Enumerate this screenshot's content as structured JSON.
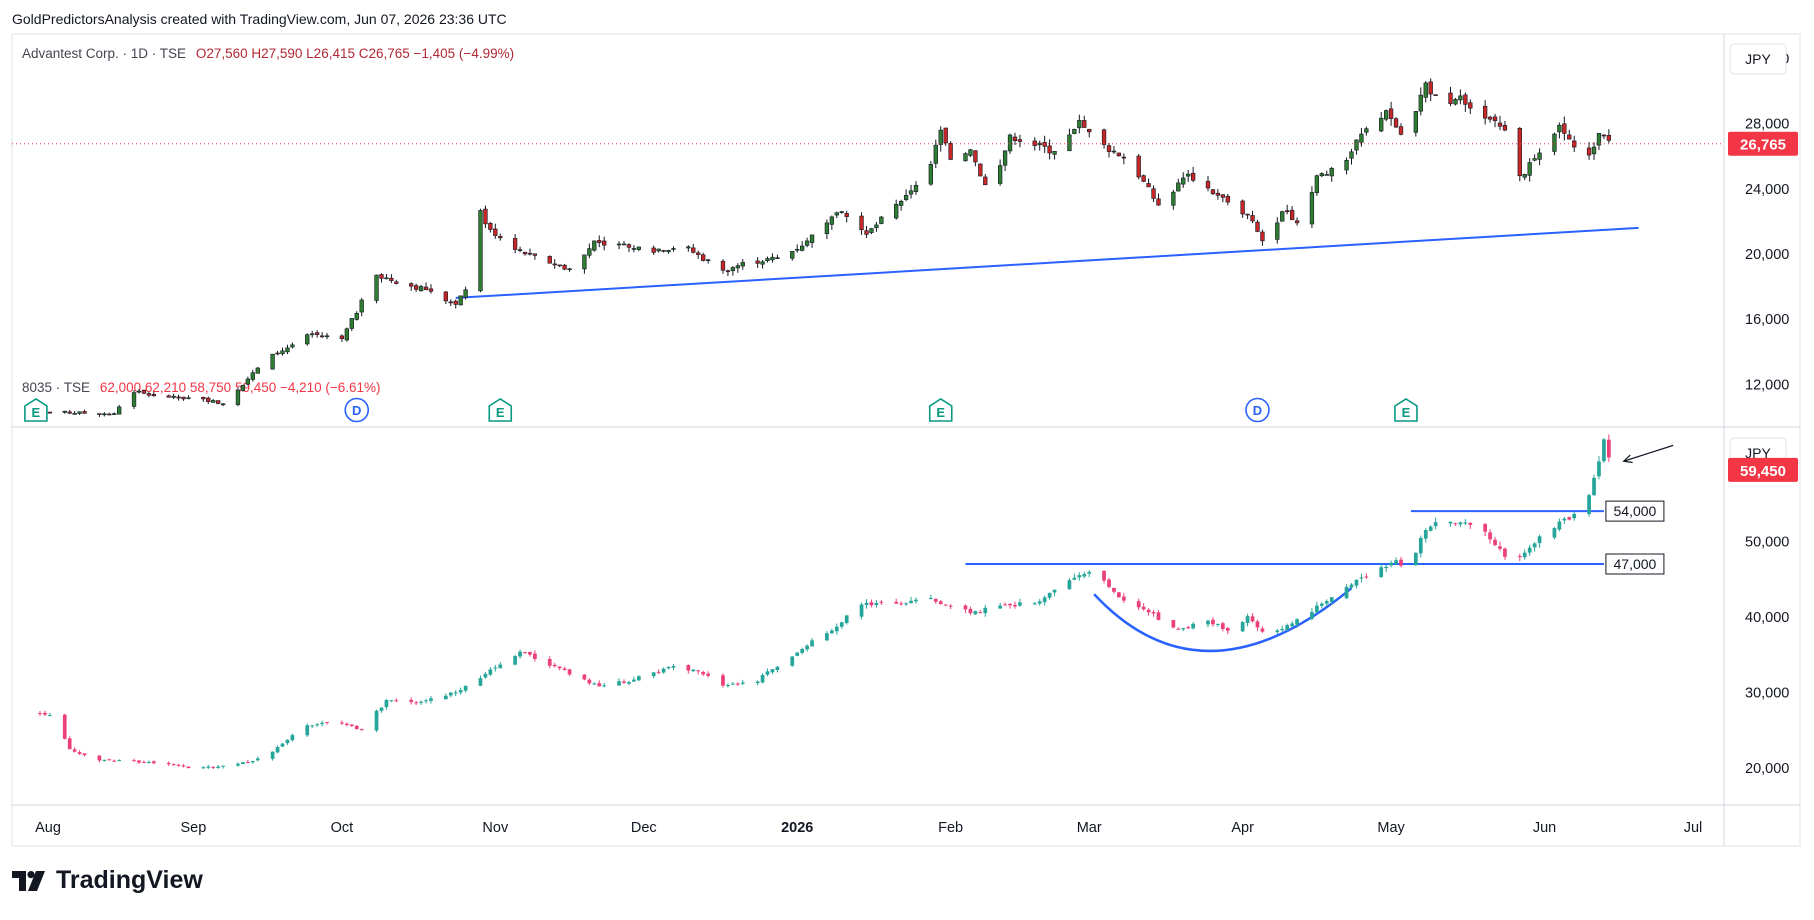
{
  "header": {
    "credit": "GoldPredictorsAnalysis created with TradingView.com, Jun 07, 2026 23:36 UTC"
  },
  "brand": {
    "name": "TradingView"
  },
  "colors": {
    "up_top": "#2e7d32",
    "down_top": "#c62828",
    "up_bottom": "#26a69a",
    "down_bottom": "#ec407a",
    "trendline": "#2962ff",
    "price_badge_top": "#f23645",
    "price_badge_bottom": "#f23645"
  },
  "x_axis": {
    "months": [
      {
        "label": "Aug",
        "day": 0
      },
      {
        "label": "Sep",
        "day": 31
      },
      {
        "label": "Oct",
        "day": 61
      },
      {
        "label": "Nov",
        "day": 92
      },
      {
        "label": "Dec",
        "day": 122
      },
      {
        "label": "2026",
        "day": 153,
        "bold": true
      },
      {
        "label": "Feb",
        "day": 184
      },
      {
        "label": "Mar",
        "day": 212
      },
      {
        "label": "Apr",
        "day": 243
      },
      {
        "label": "May",
        "day": 273
      },
      {
        "label": "Jun",
        "day": 304
      },
      {
        "label": "Jul",
        "day": 334
      }
    ]
  },
  "chart_data": [
    {
      "type": "candlestick",
      "legend": {
        "symbol": "Advantest Corp. · 1D · TSE",
        "ohlc": "O27,560  H27,590  L26,415  C26,765  −1,405 (−4.99%)"
      },
      "currency": "JPY",
      "last_price": "26,765",
      "last_value": 26765,
      "ylim": [
        9500,
        33500
      ],
      "y_ticks": [
        {
          "value": 12000,
          "label": "12,000"
        },
        {
          "value": 16000,
          "label": "16,000"
        },
        {
          "value": 20000,
          "label": "20,000"
        },
        {
          "value": 24000,
          "label": "24,000"
        },
        {
          "value": 28000,
          "label": "28,000"
        },
        {
          "value": 32000,
          "label": "32,000"
        }
      ],
      "events": [
        {
          "day": 2,
          "letter": "E"
        },
        {
          "day": 64,
          "letter": "D"
        },
        {
          "day": 93,
          "letter": "E"
        },
        {
          "day": 182,
          "letter": "E"
        },
        {
          "day": 246,
          "letter": "D"
        },
        {
          "day": 276,
          "letter": "E"
        }
      ],
      "trendline": {
        "start": {
          "day": 84,
          "value": 17300
        },
        "end": {
          "day": 323,
          "value": 21600
        }
      },
      "closes": [
        {
          "day": 0,
          "close": 10300
        },
        {
          "day": 15,
          "close": 10200
        },
        {
          "day": 18,
          "close": 11600
        },
        {
          "day": 26,
          "close": 11200
        },
        {
          "day": 33,
          "close": 11100
        },
        {
          "day": 37,
          "close": 10800
        },
        {
          "day": 46,
          "close": 13600
        },
        {
          "day": 55,
          "close": 15100
        },
        {
          "day": 61,
          "close": 14800
        },
        {
          "day": 68,
          "close": 18700
        },
        {
          "day": 78,
          "close": 17800
        },
        {
          "day": 84,
          "close": 16900
        },
        {
          "day": 86,
          "close": 17800
        },
        {
          "day": 88,
          "close": 23000
        },
        {
          "day": 91,
          "close": 21500
        },
        {
          "day": 98,
          "close": 20000
        },
        {
          "day": 108,
          "close": 19000
        },
        {
          "day": 112,
          "close": 20800
        },
        {
          "day": 122,
          "close": 20200
        },
        {
          "day": 130,
          "close": 20500
        },
        {
          "day": 138,
          "close": 19000
        },
        {
          "day": 143,
          "close": 19500
        },
        {
          "day": 150,
          "close": 19800
        },
        {
          "day": 155,
          "close": 20800
        },
        {
          "day": 162,
          "close": 22600
        },
        {
          "day": 167,
          "close": 21200
        },
        {
          "day": 175,
          "close": 23600
        },
        {
          "day": 180,
          "close": 25500
        },
        {
          "day": 182,
          "close": 27600
        },
        {
          "day": 184,
          "close": 25800
        },
        {
          "day": 188,
          "close": 26400
        },
        {
          "day": 192,
          "close": 23500
        },
        {
          "day": 196,
          "close": 27300
        },
        {
          "day": 205,
          "close": 26300
        },
        {
          "day": 210,
          "close": 28200
        },
        {
          "day": 213,
          "close": 27000
        },
        {
          "day": 220,
          "close": 25800
        },
        {
          "day": 226,
          "close": 23000
        },
        {
          "day": 232,
          "close": 24900
        },
        {
          "day": 238,
          "close": 23600
        },
        {
          "day": 244,
          "close": 22400
        },
        {
          "day": 248,
          "close": 20300
        },
        {
          "day": 251,
          "close": 22600
        },
        {
          "day": 255,
          "close": 21800
        },
        {
          "day": 258,
          "close": 24800
        },
        {
          "day": 263,
          "close": 25200
        },
        {
          "day": 266,
          "close": 27000
        },
        {
          "day": 272,
          "close": 28800
        },
        {
          "day": 276,
          "close": 26900
        },
        {
          "day": 280,
          "close": 30500
        },
        {
          "day": 284,
          "close": 28700
        },
        {
          "day": 287,
          "close": 29700
        },
        {
          "day": 291,
          "close": 28500
        },
        {
          "day": 296,
          "close": 27600
        },
        {
          "day": 299,
          "close": 24800
        },
        {
          "day": 304,
          "close": 26300
        },
        {
          "day": 307,
          "close": 27900
        },
        {
          "day": 312,
          "close": 25300
        },
        {
          "day": 315,
          "close": 27400
        },
        {
          "day": 318,
          "close": 26765
        }
      ]
    },
    {
      "type": "candlestick",
      "legend": {
        "symbol": "8035 · TSE",
        "ohlc": "62,000  62,210  58,750  59,450  −4,210 (−6.61%)"
      },
      "currency": "JPY",
      "last_price": "59,450",
      "last_value": 59450,
      "ylim": [
        15500,
        65000
      ],
      "y_ticks": [
        {
          "value": 20000,
          "label": "20,000"
        },
        {
          "value": 30000,
          "label": "30,000"
        },
        {
          "value": 40000,
          "label": "40,000"
        },
        {
          "value": 50000,
          "label": "50,000"
        }
      ],
      "levels": [
        {
          "label": "54,000",
          "value": 54000,
          "start_day": 277,
          "end_day": 316
        },
        {
          "label": "47,000",
          "value": 47000,
          "start_day": 187,
          "end_day": 316
        }
      ],
      "cup_curve": {
        "start": {
          "day": 213,
          "value": 43000
        },
        "bottom": {
          "day": 237,
          "value": 35500
        },
        "end": {
          "day": 265,
          "value": 43800
        }
      },
      "arrow": {
        "from": {
          "day": 330,
          "value": 62700
        },
        "to": {
          "day": 320,
          "value": 60600
        }
      },
      "closes": [
        {
          "day": 0,
          "close": 27200
        },
        {
          "day": 3,
          "close": 27000
        },
        {
          "day": 6,
          "close": 22500
        },
        {
          "day": 12,
          "close": 21000
        },
        {
          "day": 22,
          "close": 20800
        },
        {
          "day": 30,
          "close": 20000
        },
        {
          "day": 38,
          "close": 20300
        },
        {
          "day": 46,
          "close": 21500
        },
        {
          "day": 53,
          "close": 25500
        },
        {
          "day": 60,
          "close": 26200
        },
        {
          "day": 65,
          "close": 25000
        },
        {
          "day": 70,
          "close": 29000
        },
        {
          "day": 76,
          "close": 28600
        },
        {
          "day": 84,
          "close": 30000
        },
        {
          "day": 92,
          "close": 33300
        },
        {
          "day": 97,
          "close": 35400
        },
        {
          "day": 105,
          "close": 33200
        },
        {
          "day": 113,
          "close": 30800
        },
        {
          "day": 120,
          "close": 31700
        },
        {
          "day": 128,
          "close": 33500
        },
        {
          "day": 133,
          "close": 32800
        },
        {
          "day": 138,
          "close": 30900
        },
        {
          "day": 144,
          "close": 31200
        },
        {
          "day": 150,
          "close": 34000
        },
        {
          "day": 157,
          "close": 37400
        },
        {
          "day": 160,
          "close": 38200
        },
        {
          "day": 165,
          "close": 41500
        },
        {
          "day": 170,
          "close": 41900
        },
        {
          "day": 175,
          "close": 41800
        },
        {
          "day": 180,
          "close": 42500
        },
        {
          "day": 183,
          "close": 41600
        },
        {
          "day": 188,
          "close": 40500
        },
        {
          "day": 195,
          "close": 41600
        },
        {
          "day": 201,
          "close": 41800
        },
        {
          "day": 207,
          "close": 44300
        },
        {
          "day": 213,
          "close": 46200
        },
        {
          "day": 218,
          "close": 42600
        },
        {
          "day": 224,
          "close": 40600
        },
        {
          "day": 230,
          "close": 38300
        },
        {
          "day": 236,
          "close": 39500
        },
        {
          "day": 241,
          "close": 38000
        },
        {
          "day": 244,
          "close": 40100
        },
        {
          "day": 248,
          "close": 37600
        },
        {
          "day": 251,
          "close": 38400
        },
        {
          "day": 256,
          "close": 40300
        },
        {
          "day": 262,
          "close": 43300
        },
        {
          "day": 266,
          "close": 44900
        },
        {
          "day": 270,
          "close": 46000
        },
        {
          "day": 274,
          "close": 47500
        },
        {
          "day": 276,
          "close": 46000
        },
        {
          "day": 280,
          "close": 51500
        },
        {
          "day": 283,
          "close": 53000
        },
        {
          "day": 287,
          "close": 52500
        },
        {
          "day": 291,
          "close": 51700
        },
        {
          "day": 294,
          "close": 49500
        },
        {
          "day": 297,
          "close": 47000
        },
        {
          "day": 300,
          "close": 48500
        },
        {
          "day": 304,
          "close": 51000
        },
        {
          "day": 308,
          "close": 53000
        },
        {
          "day": 312,
          "close": 53700
        },
        {
          "day": 314,
          "close": 58400
        },
        {
          "day": 316,
          "close": 63500
        },
        {
          "day": 318,
          "close": 59450
        }
      ]
    }
  ]
}
